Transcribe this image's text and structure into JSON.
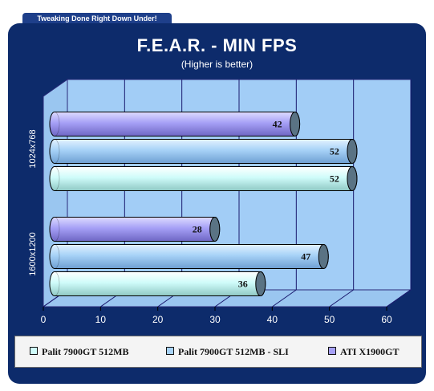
{
  "banner": "Tweaking Done Right Down Under!",
  "chart_data": {
    "type": "bar",
    "orientation": "horizontal",
    "title": "F.E.A.R. - MIN FPS",
    "subtitle": "(Higher is better)",
    "categories": [
      "1600x1200",
      "1024x768"
    ],
    "series": [
      {
        "name": "Palit 7900GT 512MB",
        "color": "#cffcfa",
        "values": [
          36,
          52
        ]
      },
      {
        "name": "Palit 7900GT 512MB - SLI",
        "color": "#a7d2f7",
        "values": [
          47,
          52
        ]
      },
      {
        "name": "ATI X1900GT",
        "color": "#a6a0f6",
        "values": [
          28,
          42
        ]
      }
    ],
    "x_ticks": [
      0,
      10,
      20,
      30,
      40,
      50,
      60
    ],
    "xlim": [
      0,
      60
    ],
    "grid": true,
    "legend_position": "bottom",
    "colors": {
      "frame": "#0d2b6b",
      "plot_area": "#a2cdf6",
      "gridline": "#1a1a6e"
    }
  }
}
